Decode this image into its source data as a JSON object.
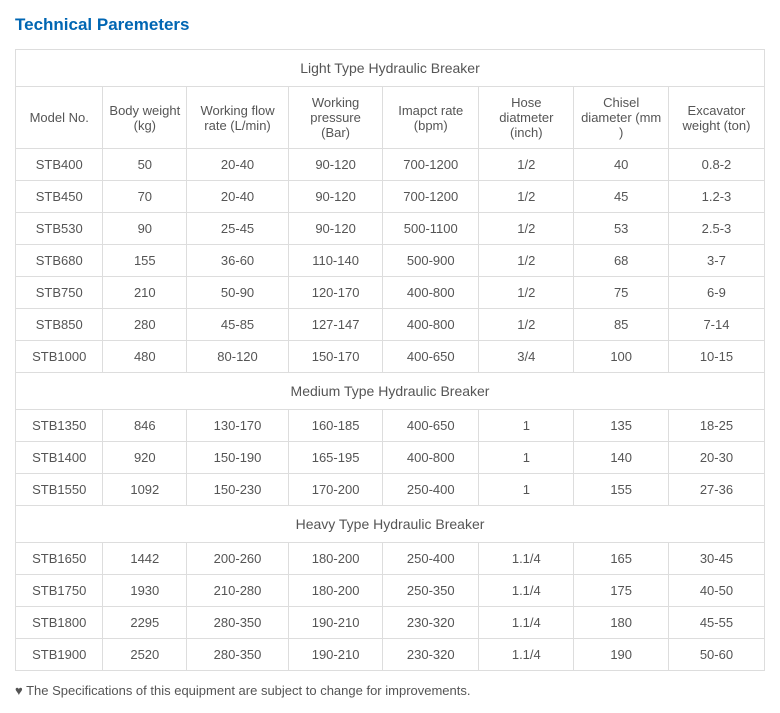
{
  "title": "Technical Paremeters",
  "columns": [
    "Model No.",
    "Body weight (kg)",
    "Working flow rate (L/min)",
    "Working pressure (Bar)",
    "Imapct rate (bpm)",
    "Hose diatmeter (inch)",
    "Chisel diameter (mm )",
    "Excavator weight (ton)"
  ],
  "sections": [
    {
      "header": "Light Type Hydraulic Breaker",
      "rows": [
        [
          "STB400",
          "50",
          "20-40",
          "90-120",
          "700-1200",
          "1/2",
          "40",
          "0.8-2"
        ],
        [
          "STB450",
          "70",
          "20-40",
          "90-120",
          "700-1200",
          "1/2",
          "45",
          "1.2-3"
        ],
        [
          "STB530",
          "90",
          "25-45",
          "90-120",
          "500-1100",
          "1/2",
          "53",
          "2.5-3"
        ],
        [
          "STB680",
          "155",
          "36-60",
          "110-140",
          "500-900",
          "1/2",
          "68",
          "3-7"
        ],
        [
          "STB750",
          "210",
          "50-90",
          "120-170",
          "400-800",
          "1/2",
          "75",
          "6-9"
        ],
        [
          "STB850",
          "280",
          "45-85",
          "127-147",
          "400-800",
          "1/2",
          "85",
          "7-14"
        ],
        [
          "STB1000",
          "480",
          "80-120",
          "150-170",
          "400-650",
          "3/4",
          "100",
          "10-15"
        ]
      ]
    },
    {
      "header": "Medium Type Hydraulic Breaker",
      "rows": [
        [
          "STB1350",
          "846",
          "130-170",
          "160-185",
          "400-650",
          "1",
          "135",
          "18-25"
        ],
        [
          "STB1400",
          "920",
          "150-190",
          "165-195",
          "400-800",
          "1",
          "140",
          "20-30"
        ],
        [
          "STB1550",
          "1092",
          "150-230",
          "170-200",
          "250-400",
          "1",
          "155",
          "27-36"
        ]
      ]
    },
    {
      "header": "Heavy Type Hydraulic Breaker",
      "rows": [
        [
          "STB1650",
          "1442",
          "200-260",
          "180-200",
          "250-400",
          "1.1/4",
          "165",
          "30-45"
        ],
        [
          "STB1750",
          "1930",
          "210-280",
          "180-200",
          "250-350",
          "1.1/4",
          "175",
          "40-50"
        ],
        [
          "STB1800",
          "2295",
          "280-350",
          "190-210",
          "230-320",
          "1.1/4",
          "180",
          "45-55"
        ],
        [
          "STB1900",
          "2520",
          "280-350",
          "190-210",
          "230-320",
          "1.1/4",
          "190",
          "50-60"
        ]
      ]
    }
  ],
  "footnote": "♥ The Specifications of this equipment are subject to change for improvements.",
  "style": {
    "title_color": "#0066b3",
    "border_color": "#dddddd",
    "text_color": "#555555",
    "background": "#ffffff",
    "font_family": "Arial",
    "title_fontsize": 17,
    "body_fontsize": 13
  }
}
